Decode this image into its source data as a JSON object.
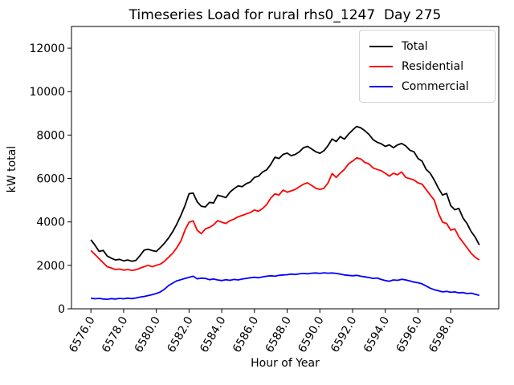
{
  "chart_data": {
    "type": "line",
    "title": "Timeseries Load for rural rhs0_1247  Day 275",
    "xlabel": "Hour of Year",
    "ylabel": "kW total",
    "xlim": [
      6574.8125,
      6600.9375
    ],
    "ylim": [
      0,
      13000
    ],
    "grid": false,
    "legend_position": "upper right",
    "x_tick_labels": [
      "6576.0",
      "6578.0",
      "6580.0",
      "6582.0",
      "6584.0",
      "6586.0",
      "6588.0",
      "6590.0",
      "6592.0",
      "6594.0",
      "6596.0",
      "6598.0"
    ],
    "y_tick_labels": [
      "0",
      "2000",
      "4000",
      "6000",
      "8000",
      "10000",
      "12000"
    ],
    "x": [
      6576.0,
      6576.25,
      6576.5,
      6576.75,
      6577.0,
      6577.25,
      6577.5,
      6577.75,
      6578.0,
      6578.25,
      6578.5,
      6578.75,
      6579.0,
      6579.25,
      6579.5,
      6579.75,
      6580.0,
      6580.25,
      6580.5,
      6580.75,
      6581.0,
      6581.25,
      6581.5,
      6581.75,
      6582.0,
      6582.25,
      6582.5,
      6582.75,
      6583.0,
      6583.25,
      6583.5,
      6583.75,
      6584.0,
      6584.25,
      6584.5,
      6584.75,
      6585.0,
      6585.25,
      6585.5,
      6585.75,
      6586.0,
      6586.25,
      6586.5,
      6586.75,
      6587.0,
      6587.25,
      6587.5,
      6587.75,
      6588.0,
      6588.25,
      6588.5,
      6588.75,
      6589.0,
      6589.25,
      6589.5,
      6589.75,
      6590.0,
      6590.25,
      6590.5,
      6590.75,
      6591.0,
      6591.25,
      6591.5,
      6591.75,
      6592.0,
      6592.25,
      6592.5,
      6592.75,
      6593.0,
      6593.25,
      6593.5,
      6593.75,
      6594.0,
      6594.25,
      6594.5,
      6594.75,
      6595.0,
      6595.25,
      6595.5,
      6595.75,
      6596.0,
      6596.25,
      6596.5,
      6596.75,
      6597.0,
      6597.25,
      6597.5,
      6597.75,
      6598.0,
      6598.25,
      6598.5,
      6598.75,
      6599.0,
      6599.25,
      6599.5,
      6599.75
    ],
    "series": [
      {
        "name": "Total",
        "color": "#000000",
        "values": [
          3180,
          2930,
          2640,
          2690,
          2430,
          2330,
          2250,
          2280,
          2210,
          2250,
          2190,
          2230,
          2450,
          2700,
          2740,
          2680,
          2640,
          2820,
          3020,
          3260,
          3550,
          3900,
          4300,
          4750,
          5300,
          5330,
          4930,
          4720,
          4690,
          4900,
          4870,
          5230,
          5180,
          5120,
          5370,
          5530,
          5660,
          5620,
          5760,
          5840,
          6050,
          6110,
          6300,
          6400,
          6650,
          6980,
          6920,
          7110,
          7170,
          7050,
          7110,
          7230,
          7420,
          7480,
          7360,
          7230,
          7160,
          7280,
          7520,
          7820,
          7700,
          7930,
          7810,
          8040,
          8230,
          8400,
          8330,
          8200,
          8030,
          7790,
          7670,
          7600,
          7480,
          7550,
          7420,
          7550,
          7610,
          7500,
          7300,
          7230,
          6920,
          6800,
          6420,
          6240,
          5920,
          5550,
          5240,
          5310,
          4750,
          4560,
          4620,
          4180,
          3930,
          3560,
          3300,
          2940
        ]
      },
      {
        "name": "Residential",
        "color": "#ff0000",
        "values": [
          2680,
          2500,
          2310,
          2120,
          1940,
          1880,
          1810,
          1830,
          1780,
          1810,
          1770,
          1800,
          1870,
          1940,
          2000,
          1940,
          2000,
          2060,
          2190,
          2370,
          2560,
          2810,
          3120,
          3620,
          3990,
          4050,
          3620,
          3460,
          3680,
          3750,
          3870,
          4060,
          3990,
          3930,
          4060,
          4130,
          4240,
          4300,
          4370,
          4430,
          4550,
          4490,
          4620,
          4800,
          5100,
          5290,
          5240,
          5470,
          5370,
          5430,
          5500,
          5620,
          5740,
          5800,
          5680,
          5550,
          5500,
          5550,
          5800,
          6230,
          6050,
          6250,
          6420,
          6670,
          6800,
          6950,
          6900,
          6740,
          6670,
          6490,
          6420,
          6360,
          6240,
          6110,
          6240,
          6170,
          6300,
          6050,
          5990,
          5930,
          5800,
          5740,
          5490,
          5240,
          5000,
          4400,
          3990,
          3930,
          3620,
          3680,
          3310,
          3060,
          2810,
          2560,
          2370,
          2250
        ]
      },
      {
        "name": "Commercial",
        "color": "#0000ff",
        "values": [
          490,
          460,
          480,
          450,
          440,
          470,
          450,
          480,
          460,
          490,
          470,
          500,
          540,
          570,
          610,
          650,
          700,
          780,
          900,
          1070,
          1180,
          1290,
          1340,
          1400,
          1450,
          1500,
          1380,
          1410,
          1400,
          1340,
          1370,
          1330,
          1300,
          1340,
          1310,
          1350,
          1330,
          1370,
          1400,
          1430,
          1450,
          1430,
          1470,
          1500,
          1520,
          1500,
          1540,
          1560,
          1570,
          1600,
          1580,
          1610,
          1630,
          1610,
          1640,
          1650,
          1630,
          1660,
          1640,
          1650,
          1630,
          1600,
          1560,
          1540,
          1520,
          1540,
          1500,
          1470,
          1440,
          1400,
          1420,
          1350,
          1300,
          1270,
          1330,
          1310,
          1360,
          1330,
          1280,
          1230,
          1200,
          1150,
          1050,
          950,
          880,
          830,
          780,
          800,
          760,
          780,
          730,
          750,
          700,
          720,
          670,
          620
        ]
      }
    ]
  }
}
